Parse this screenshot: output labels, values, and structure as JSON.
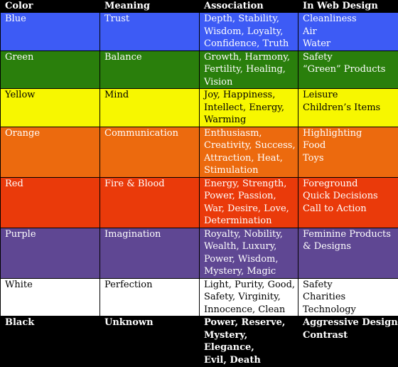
{
  "headers": [
    "Color",
    "Meaning",
    "Association",
    "In Web Design"
  ],
  "rows": [
    {
      "color": "Blue",
      "meaning": "Trust",
      "association": "Depth, Stability,\nWisdom, Loyalty,\nConfidence, Truth",
      "web": "Cleanliness\nAir\nWater",
      "bg": "#3d5bf5",
      "text": "#ffffff"
    },
    {
      "color": "Green",
      "meaning": "Balance",
      "association": "Growth, Harmony,\nFertility, Healing,\nVision",
      "web": "Safety\n“Green” Products",
      "bg": "#2a7f0c",
      "text": "#ffffff"
    },
    {
      "color": "Yellow",
      "meaning": "Mind",
      "association": "Joy, Happiness,\nIntellect, Energy,\nWarming",
      "web": "Leisure\nChildren’s Items",
      "bg": "#f7f700",
      "text": "#000000"
    },
    {
      "color": "Orange",
      "meaning": "Communication",
      "association": "Enthusiasm,\nCreativity, Success,\nAttraction, Heat,\nStimulation",
      "web": "Highlighting\nFood\nToys",
      "bg": "#ec6a0e",
      "text": "#ffffff"
    },
    {
      "color": "Red",
      "meaning": "Fire & Blood",
      "association": "Energy, Strength,\nPower, Passion,\nWar, Desire, Love,\nDetermination",
      "web": "Foreground\nQuick Decisions\nCall to Action",
      "bg": "#ea3a0a",
      "text": "#ffffff"
    },
    {
      "color": "Purple",
      "meaning": "Imagination",
      "association": "Royalty, Nobility,\nWealth, Luxury,\nPower, Wisdom,\nMystery, Magic",
      "web": "Feminine Products\n& Designs",
      "bg": "#5f4793",
      "text": "#ffffff"
    },
    {
      "color": "White",
      "meaning": "Perfection",
      "association": "Light, Purity, Good,\nSafety, Virginity,\nInnocence, Clean",
      "web": "Safety\nCharities\nTechnology",
      "bg": "#ffffff",
      "text": "#000000"
    },
    {
      "color": "Black",
      "meaning": "Unknown",
      "association": "Power, Reserve,\nMystery, Elegance,\nEvil, Death",
      "web": "Aggressive Design\nContrast",
      "bg": "#000000",
      "text": "#ffffff",
      "bold": true
    }
  ]
}
